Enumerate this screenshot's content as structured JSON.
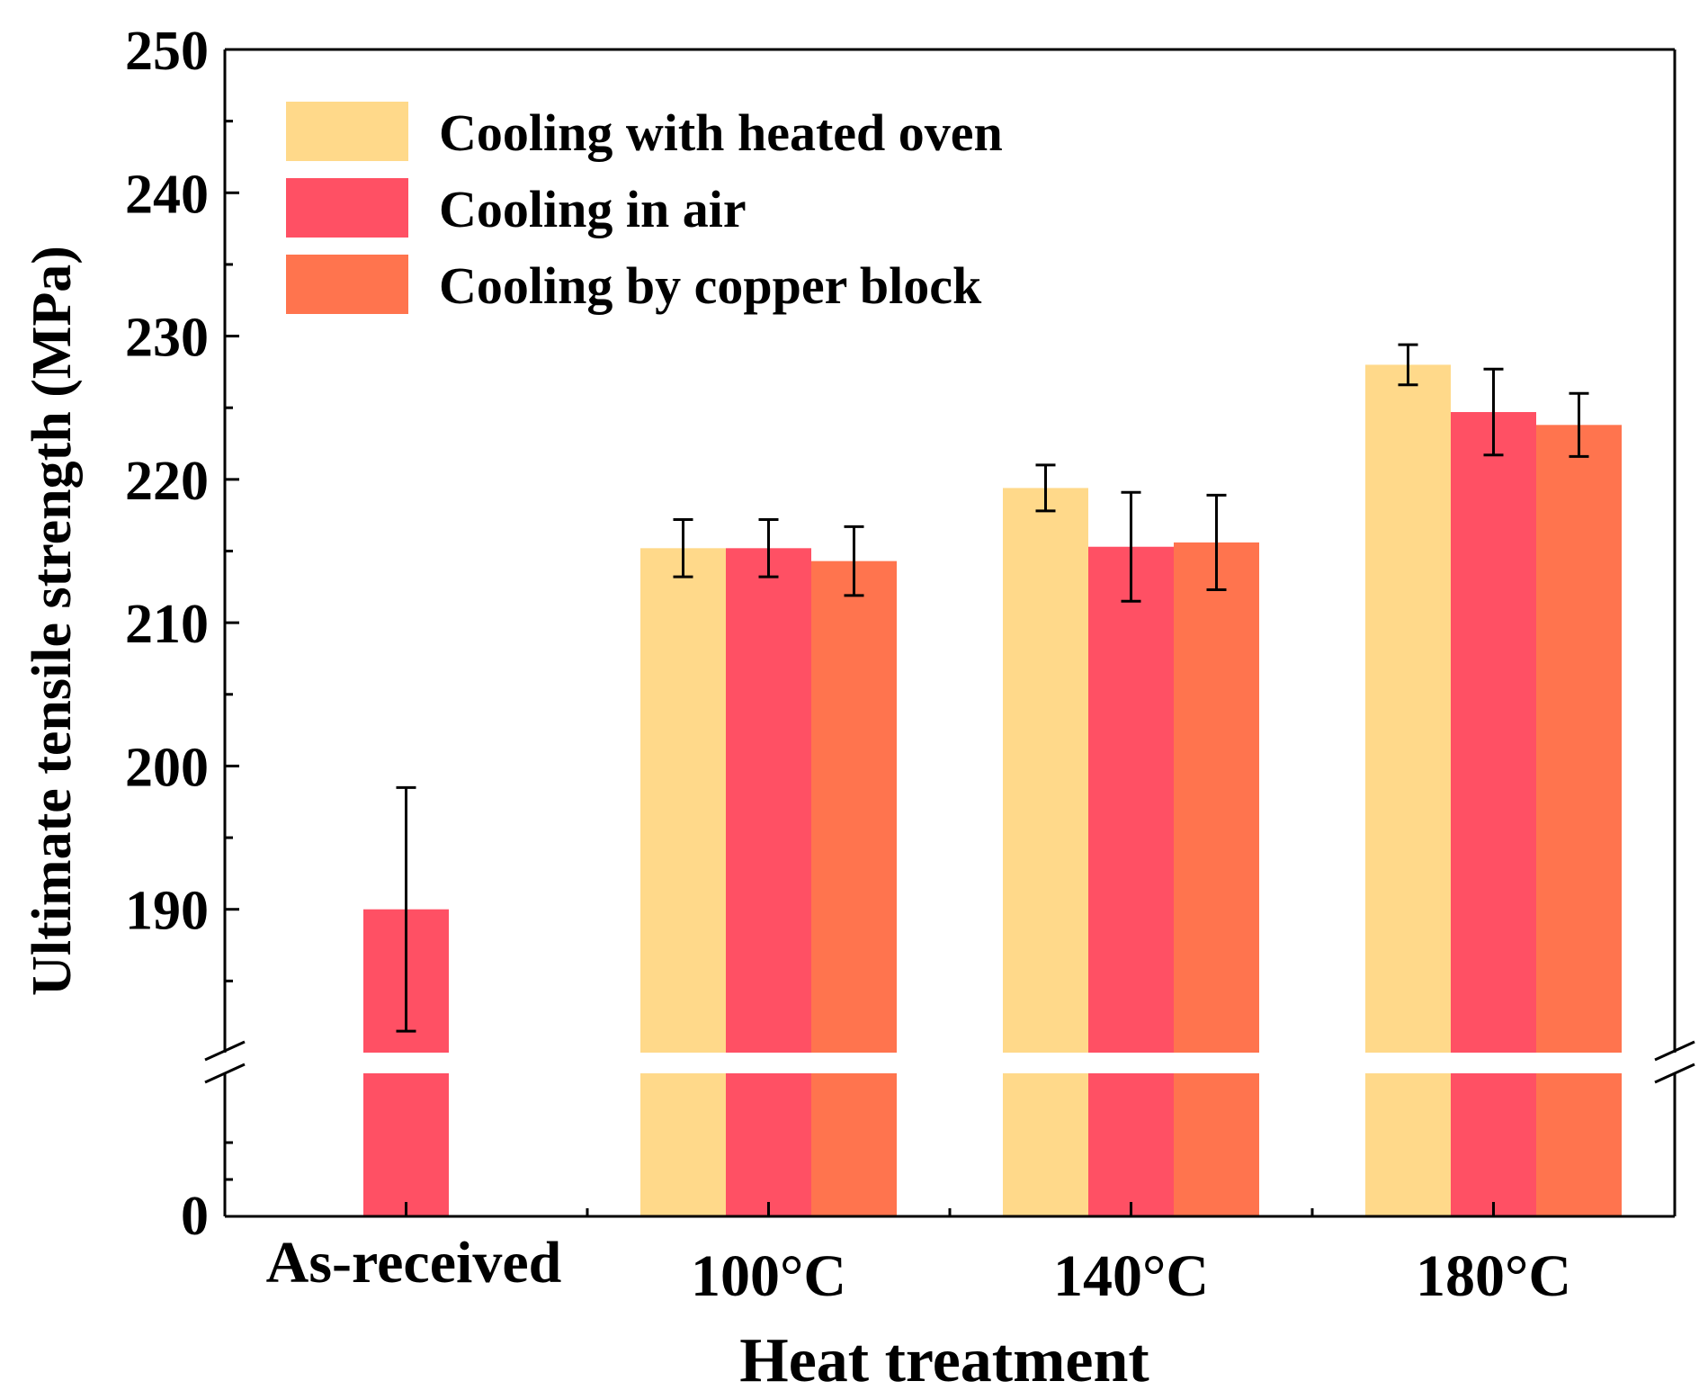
{
  "chart_data": {
    "type": "bar",
    "xlabel": "Heat treatment",
    "ylabel": "Ultimate tensile strength (MPa)",
    "categories": [
      "As-received",
      "100°C",
      "140°C",
      "180°C"
    ],
    "y_axis": {
      "broken": true,
      "lower_segment_ticks": [
        0
      ],
      "upper_segment_range": [
        180,
        250
      ],
      "upper_segment_ticks": [
        190,
        200,
        210,
        220,
        230,
        240,
        250
      ]
    },
    "legend_placement": "top-left",
    "grid": false,
    "series": [
      {
        "name": "Cooling with heated oven",
        "color": "#FFD98A",
        "values": [
          null,
          215.2,
          219.4,
          228.0
        ],
        "errors": [
          null,
          2.0,
          1.6,
          1.4
        ]
      },
      {
        "name": "Cooling in air",
        "color": "#FF5064",
        "values": [
          190.0,
          215.2,
          215.3,
          224.7
        ],
        "errors": [
          8.5,
          2.0,
          3.8,
          3.0
        ]
      },
      {
        "name": "Cooling by copper block",
        "color": "#FF744E",
        "values": [
          null,
          214.3,
          215.6,
          223.8
        ],
        "errors": [
          null,
          2.4,
          3.3,
          2.2
        ]
      }
    ]
  }
}
